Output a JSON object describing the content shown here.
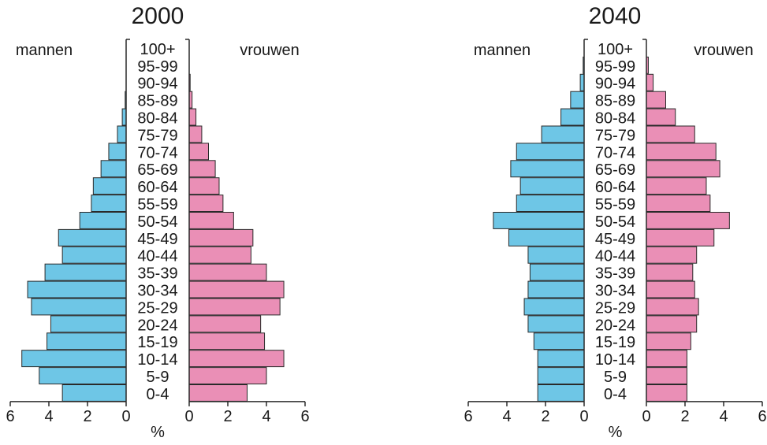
{
  "colors": {
    "male": "#6ec6e6",
    "female": "#ea8fb6",
    "stroke": "#2a2a2a",
    "text": "#1a1a1a"
  },
  "chart_data": [
    {
      "type": "bar",
      "orientation": "population-pyramid",
      "title": "2000",
      "left_label": "mannen",
      "right_label": "vrouwen",
      "xlabel": "%",
      "xlim": [
        0,
        6
      ],
      "xticks": [
        "6",
        "4",
        "2",
        "0",
        "0",
        "2",
        "4",
        "6"
      ],
      "categories": [
        "100+",
        "95-99",
        "90-94",
        "85-89",
        "80-84",
        "75-79",
        "70-74",
        "65-69",
        "60-64",
        "55-59",
        "50-54",
        "45-49",
        "40-44",
        "35-39",
        "30-34",
        "25-29",
        "20-24",
        "15-19",
        "10-14",
        "5-9",
        "0-4"
      ],
      "series": [
        {
          "name": "mannen",
          "values": [
            0.0,
            0.0,
            0.0,
            0.05,
            0.2,
            0.45,
            0.9,
            1.3,
            1.7,
            1.8,
            2.4,
            3.5,
            3.3,
            4.2,
            5.1,
            4.9,
            3.9,
            4.1,
            5.4,
            4.5,
            3.3
          ]
        },
        {
          "name": "vrouwen",
          "values": [
            0.0,
            0.0,
            0.05,
            0.15,
            0.35,
            0.65,
            1.0,
            1.35,
            1.55,
            1.75,
            2.3,
            3.3,
            3.2,
            4.0,
            4.9,
            4.7,
            3.7,
            3.9,
            4.9,
            4.0,
            3.0
          ]
        }
      ]
    },
    {
      "type": "bar",
      "orientation": "population-pyramid",
      "title": "2040",
      "left_label": "mannen",
      "right_label": "vrouwen",
      "xlabel": "%",
      "xlim": [
        0,
        6
      ],
      "xticks": [
        "6",
        "4",
        "2",
        "0",
        "0",
        "2",
        "4",
        "6"
      ],
      "categories": [
        "100+",
        "95-99",
        "90-94",
        "85-89",
        "80-84",
        "75-79",
        "70-74",
        "65-69",
        "60-64",
        "55-59",
        "50-54",
        "45-49",
        "40-44",
        "35-39",
        "30-34",
        "25-29",
        "20-24",
        "15-19",
        "10-14",
        "5-9",
        "0-4"
      ],
      "series": [
        {
          "name": "mannen",
          "values": [
            0.0,
            0.05,
            0.2,
            0.7,
            1.2,
            2.2,
            3.5,
            3.8,
            3.3,
            3.5,
            4.7,
            3.9,
            2.9,
            2.8,
            2.9,
            3.1,
            2.9,
            2.6,
            2.4,
            2.4,
            2.4
          ]
        },
        {
          "name": "vrouwen",
          "values": [
            0.0,
            0.1,
            0.35,
            1.0,
            1.5,
            2.5,
            3.6,
            3.8,
            3.1,
            3.3,
            4.3,
            3.5,
            2.6,
            2.4,
            2.5,
            2.7,
            2.6,
            2.3,
            2.1,
            2.1,
            2.1
          ]
        }
      ]
    }
  ]
}
